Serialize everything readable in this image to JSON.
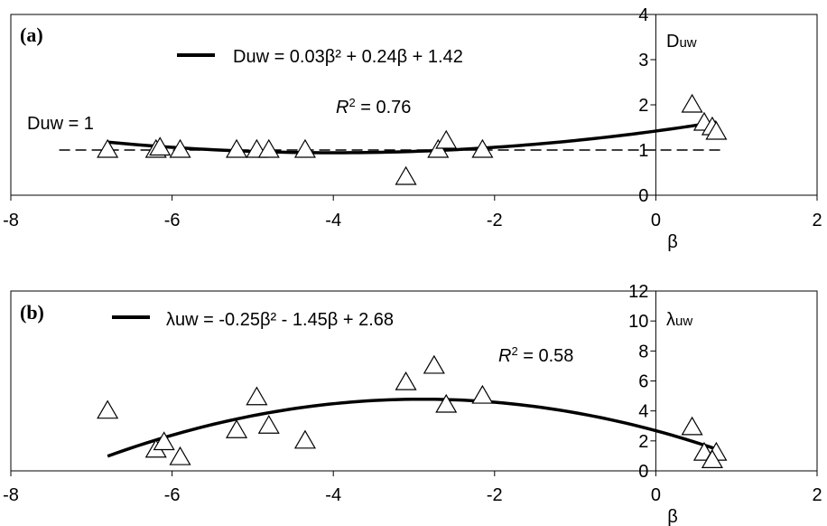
{
  "chart_data": [
    {
      "type": "scatter",
      "panel_label": "(a)",
      "equation": "Duw = 0.03β² + 0.24β + 1.42",
      "r2_prefix": "R",
      "r2_rest": " = 0.76",
      "ref_label": "Duw = 1",
      "ylabel_main": "D",
      "ylabel_sub": "uw",
      "xlabel": "β",
      "xlim": [
        -8,
        2
      ],
      "ylim": [
        0,
        4
      ],
      "xticks": [
        "-8",
        "-6",
        "-4",
        "-2",
        "0",
        "2"
      ],
      "yticks": [
        "0",
        "1",
        "2",
        "3",
        "4"
      ],
      "reference_line_y": 1,
      "fit": {
        "a": 0.03,
        "b": 0.24,
        "c": 1.42,
        "x_range": [
          -6.8,
          0.75
        ]
      },
      "points": [
        {
          "x": -6.8,
          "y": 1.0
        },
        {
          "x": -6.2,
          "y": 1.0
        },
        {
          "x": -6.15,
          "y": 1.05
        },
        {
          "x": -5.9,
          "y": 1.0
        },
        {
          "x": -5.2,
          "y": 1.0
        },
        {
          "x": -4.95,
          "y": 1.0
        },
        {
          "x": -4.8,
          "y": 1.0
        },
        {
          "x": -4.35,
          "y": 1.0
        },
        {
          "x": -3.1,
          "y": 0.4
        },
        {
          "x": -2.7,
          "y": 1.0
        },
        {
          "x": -2.6,
          "y": 1.2
        },
        {
          "x": -2.15,
          "y": 1.0
        },
        {
          "x": 0.45,
          "y": 2.0
        },
        {
          "x": 0.6,
          "y": 1.6
        },
        {
          "x": 0.7,
          "y": 1.5
        },
        {
          "x": 0.75,
          "y": 1.4
        }
      ]
    },
    {
      "type": "scatter",
      "panel_label": "(b)",
      "equation": "λuw = -0.25β² - 1.45β + 2.68",
      "r2_prefix": "R",
      "r2_rest": " = 0.58",
      "ylabel_main": "λ",
      "ylabel_sub": "uw",
      "xlabel": "β",
      "xlim": [
        -8,
        2
      ],
      "ylim": [
        0,
        12
      ],
      "xticks": [
        "-8",
        "-6",
        "-4",
        "-2",
        "0",
        "2"
      ],
      "yticks": [
        "0",
        "2",
        "4",
        "6",
        "8",
        "10",
        "12"
      ],
      "fit": {
        "a": -0.25,
        "b": -1.45,
        "c": 2.68,
        "x_range": [
          -6.8,
          0.75
        ]
      },
      "points": [
        {
          "x": -6.8,
          "y": 4.0
        },
        {
          "x": -6.2,
          "y": 1.4
        },
        {
          "x": -6.1,
          "y": 1.9
        },
        {
          "x": -5.9,
          "y": 0.9
        },
        {
          "x": -5.2,
          "y": 2.7
        },
        {
          "x": -4.95,
          "y": 4.9
        },
        {
          "x": -4.8,
          "y": 3.0
        },
        {
          "x": -4.35,
          "y": 2.0
        },
        {
          "x": -3.1,
          "y": 5.9
        },
        {
          "x": -2.75,
          "y": 7.0
        },
        {
          "x": -2.6,
          "y": 4.4
        },
        {
          "x": -2.15,
          "y": 5.0
        },
        {
          "x": 0.45,
          "y": 2.9
        },
        {
          "x": 0.6,
          "y": 1.2
        },
        {
          "x": 0.75,
          "y": 1.2
        },
        {
          "x": 0.7,
          "y": 0.7
        }
      ]
    }
  ]
}
